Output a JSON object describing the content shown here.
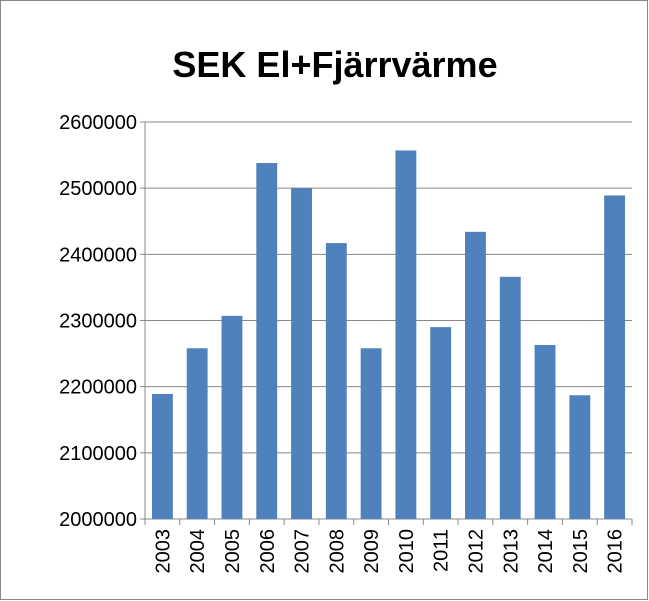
{
  "chart_data": {
    "type": "bar",
    "title": "SEK El+Fjärrvärme",
    "categories": [
      "2003",
      "2004",
      "2005",
      "2006",
      "2007",
      "2008",
      "2009",
      "2010",
      "2011",
      "2012",
      "2013",
      "2014",
      "2015",
      "2016"
    ],
    "values": [
      2189000,
      2258000,
      2307000,
      2538000,
      2500000,
      2417000,
      2258000,
      2557000,
      2290000,
      2434000,
      2366000,
      2263000,
      2187000,
      2489000
    ],
    "color": "#4f81bd",
    "ylim": [
      2000000,
      2600000
    ],
    "yticks": [
      2000000,
      2100000,
      2200000,
      2300000,
      2400000,
      2500000,
      2600000
    ],
    "grid": true
  }
}
